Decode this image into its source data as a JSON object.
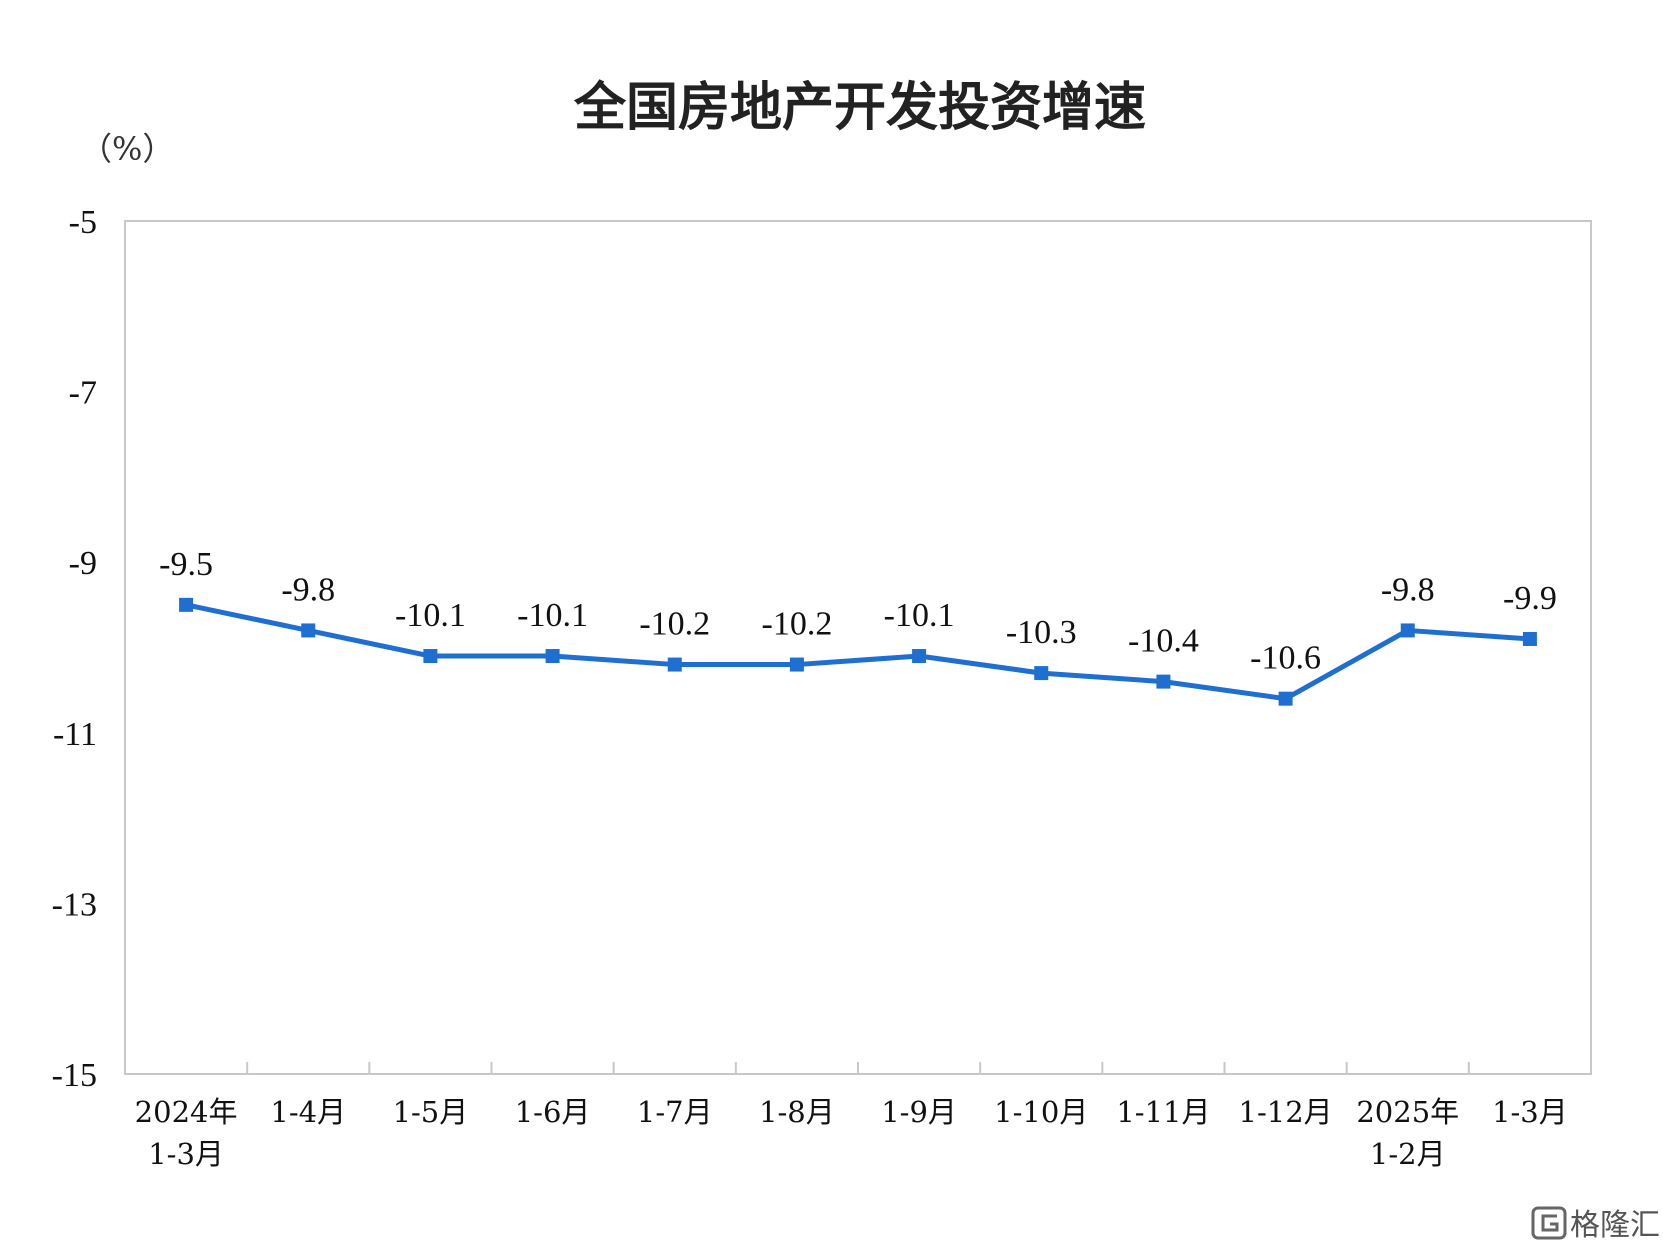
{
  "chart_data": {
    "type": "line",
    "title": "全国房地产开发投资增速",
    "unit": "（%）",
    "categories": [
      "2024年\n1-3月",
      "1-4月",
      "1-5月",
      "1-6月",
      "1-7月",
      "1-8月",
      "1-9月",
      "1-10月",
      "1-11月",
      "1-12月",
      "2025年\n1-2月",
      "1-3月"
    ],
    "series": [
      {
        "values": [
          -9.5,
          -9.8,
          -10.1,
          -10.1,
          -10.2,
          -10.2,
          -10.1,
          -10.3,
          -10.4,
          -10.6,
          -9.8,
          -9.9
        ]
      }
    ],
    "ylim": [
      -15,
      -5
    ],
    "yticks": [
      -5,
      -7,
      -9,
      -11,
      -13,
      -15
    ],
    "grid": false,
    "colors": {
      "line": "#1f6fd1",
      "axis": "#c8c8c8"
    },
    "marker": "square",
    "data_labels": true
  },
  "watermark": {
    "icon": "gelonghui-logo-icon",
    "text": "格隆汇"
  }
}
